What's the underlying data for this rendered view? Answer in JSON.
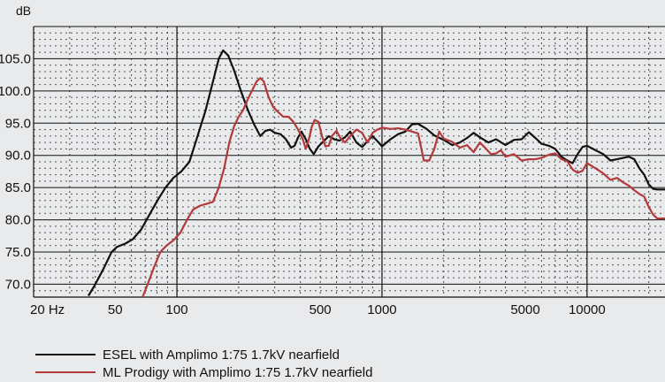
{
  "chart_data": {
    "type": "line",
    "ylabel": "dB",
    "x_scale": "log",
    "xlim": [
      20,
      24000
    ],
    "ylim": [
      68,
      110
    ],
    "x_ticks": [
      {
        "value": 20,
        "label": "20 Hz"
      },
      {
        "value": 50,
        "label": "50"
      },
      {
        "value": 100,
        "label": "100"
      },
      {
        "value": 500,
        "label": "500"
      },
      {
        "value": 1000,
        "label": "1000"
      },
      {
        "value": 5000,
        "label": "5000"
      },
      {
        "value": 10000,
        "label": "10000"
      }
    ],
    "y_ticks": [
      {
        "value": 70,
        "label": "70.0"
      },
      {
        "value": 75,
        "label": "75.0"
      },
      {
        "value": 80,
        "label": "80.0"
      },
      {
        "value": 85,
        "label": "85.0"
      },
      {
        "value": 90,
        "label": "90.0"
      },
      {
        "value": 95,
        "label": "95.0"
      },
      {
        "value": 100,
        "label": "100.0"
      },
      {
        "value": 105,
        "label": "105.0"
      }
    ],
    "grid": true,
    "legend_position": "bottom-left",
    "series": [
      {
        "name": "ESEL with Amplimo 1:75 1.7kV nearfield",
        "color": "#111111",
        "points": [
          [
            37,
            68.2
          ],
          [
            40,
            70
          ],
          [
            44,
            72.5
          ],
          [
            48,
            75
          ],
          [
            51,
            75.8
          ],
          [
            56,
            76.3
          ],
          [
            61,
            77
          ],
          [
            67,
            78.5
          ],
          [
            74,
            81
          ],
          [
            81,
            83.2
          ],
          [
            88,
            85
          ],
          [
            96,
            86.5
          ],
          [
            105,
            87.5
          ],
          [
            115,
            89
          ],
          [
            126,
            93
          ],
          [
            138,
            97
          ],
          [
            150,
            101.5
          ],
          [
            160,
            105
          ],
          [
            168,
            106.3
          ],
          [
            178,
            105.5
          ],
          [
            190,
            103.2
          ],
          [
            205,
            100
          ],
          [
            222,
            97
          ],
          [
            238,
            94.8
          ],
          [
            255,
            93
          ],
          [
            270,
            93.8
          ],
          [
            285,
            94
          ],
          [
            300,
            93.5
          ],
          [
            320,
            93.3
          ],
          [
            340,
            92.5
          ],
          [
            360,
            91.2
          ],
          [
            375,
            91.5
          ],
          [
            390,
            92.8
          ],
          [
            405,
            93.7
          ],
          [
            425,
            92.5
          ],
          [
            445,
            91
          ],
          [
            465,
            90.2
          ],
          [
            490,
            91.4
          ],
          [
            520,
            92.2
          ],
          [
            550,
            93
          ],
          [
            585,
            92.5
          ],
          [
            620,
            92.3
          ],
          [
            660,
            92.8
          ],
          [
            700,
            93.7
          ],
          [
            750,
            92
          ],
          [
            800,
            91.3
          ],
          [
            850,
            92.2
          ],
          [
            900,
            93
          ],
          [
            950,
            92.2
          ],
          [
            1000,
            91.4
          ],
          [
            1100,
            92.5
          ],
          [
            1200,
            93.3
          ],
          [
            1300,
            93.7
          ],
          [
            1400,
            94.8
          ],
          [
            1500,
            94.9
          ],
          [
            1650,
            94.1
          ],
          [
            1800,
            93.1
          ],
          [
            2000,
            92.4
          ],
          [
            2200,
            91.6
          ],
          [
            2400,
            92
          ],
          [
            2600,
            92.7
          ],
          [
            2800,
            93.5
          ],
          [
            3000,
            92.8
          ],
          [
            3300,
            92
          ],
          [
            3600,
            92.5
          ],
          [
            4000,
            91.6
          ],
          [
            4400,
            92.4
          ],
          [
            4800,
            92.5
          ],
          [
            5200,
            93.6
          ],
          [
            5600,
            92.7
          ],
          [
            6000,
            91.8
          ],
          [
            6500,
            91.5
          ],
          [
            7000,
            91
          ],
          [
            7500,
            89.8
          ],
          [
            8000,
            89.2
          ],
          [
            8500,
            88.8
          ],
          [
            9000,
            90.2
          ],
          [
            9500,
            91.3
          ],
          [
            10000,
            91.5
          ],
          [
            11000,
            90.8
          ],
          [
            12000,
            90.2
          ],
          [
            13000,
            89.2
          ],
          [
            14000,
            89.4
          ],
          [
            15000,
            89.6
          ],
          [
            16000,
            89.8
          ],
          [
            17000,
            89.4
          ],
          [
            18000,
            88
          ],
          [
            19000,
            87
          ],
          [
            20000,
            85.5
          ],
          [
            21000,
            84.8
          ],
          [
            22000,
            84.7
          ],
          [
            24000,
            84.7
          ]
        ]
      },
      {
        "name": "ML Prodigy with Amplimo 1:75 1.7kV nearfield",
        "color": "#b23a3a",
        "points": [
          [
            68,
            68
          ],
          [
            72,
            70
          ],
          [
            77,
            72.5
          ],
          [
            83,
            75
          ],
          [
            89,
            76
          ],
          [
            96,
            76.8
          ],
          [
            104,
            78
          ],
          [
            112,
            80
          ],
          [
            120,
            81.6
          ],
          [
            130,
            82.2
          ],
          [
            140,
            82.5
          ],
          [
            150,
            82.8
          ],
          [
            160,
            85
          ],
          [
            170,
            88
          ],
          [
            180,
            92
          ],
          [
            190,
            94.5
          ],
          [
            200,
            96
          ],
          [
            210,
            97
          ],
          [
            220,
            98.5
          ],
          [
            232,
            100
          ],
          [
            245,
            101.5
          ],
          [
            255,
            102
          ],
          [
            265,
            101.5
          ],
          [
            280,
            99
          ],
          [
            295,
            97.5
          ],
          [
            310,
            96.8
          ],
          [
            330,
            96
          ],
          [
            350,
            96
          ],
          [
            370,
            95.2
          ],
          [
            390,
            94
          ],
          [
            410,
            92.6
          ],
          [
            425,
            91
          ],
          [
            440,
            92.5
          ],
          [
            455,
            94.5
          ],
          [
            470,
            95.5
          ],
          [
            490,
            95.2
          ],
          [
            510,
            93
          ],
          [
            530,
            91.4
          ],
          [
            550,
            91.5
          ],
          [
            570,
            93
          ],
          [
            600,
            93.8
          ],
          [
            630,
            92.6
          ],
          [
            660,
            92
          ],
          [
            700,
            93
          ],
          [
            750,
            94
          ],
          [
            800,
            93.5
          ],
          [
            850,
            92
          ],
          [
            900,
            93.5
          ],
          [
            950,
            94
          ],
          [
            1000,
            94.3
          ],
          [
            1100,
            94.1
          ],
          [
            1200,
            94.2
          ],
          [
            1300,
            94
          ],
          [
            1400,
            93.7
          ],
          [
            1500,
            93.4
          ],
          [
            1600,
            89.2
          ],
          [
            1700,
            89.2
          ],
          [
            1800,
            91
          ],
          [
            1900,
            93.7
          ],
          [
            2000,
            92.6
          ],
          [
            2200,
            92.1
          ],
          [
            2400,
            91.2
          ],
          [
            2600,
            91.6
          ],
          [
            2800,
            90.5
          ],
          [
            3000,
            92
          ],
          [
            3200,
            91.1
          ],
          [
            3400,
            90.2
          ],
          [
            3600,
            90.3
          ],
          [
            3800,
            90.8
          ],
          [
            4000,
            89.8
          ],
          [
            4400,
            90.2
          ],
          [
            4800,
            89.2
          ],
          [
            5200,
            89.4
          ],
          [
            5600,
            89.4
          ],
          [
            6000,
            89.6
          ],
          [
            6500,
            90.1
          ],
          [
            7000,
            90.3
          ],
          [
            7500,
            89.4
          ],
          [
            8000,
            89.1
          ],
          [
            8500,
            87.8
          ],
          [
            9000,
            87.3
          ],
          [
            9500,
            87.6
          ],
          [
            10000,
            88.8
          ],
          [
            11000,
            88
          ],
          [
            12000,
            87.2
          ],
          [
            13000,
            86.2
          ],
          [
            14000,
            86.5
          ],
          [
            15000,
            85.8
          ],
          [
            16000,
            85.3
          ],
          [
            17000,
            84.6
          ],
          [
            18000,
            84
          ],
          [
            19000,
            83.6
          ],
          [
            20000,
            82
          ],
          [
            21000,
            80.8
          ],
          [
            22000,
            80.2
          ],
          [
            24000,
            80.2
          ]
        ]
      }
    ]
  }
}
